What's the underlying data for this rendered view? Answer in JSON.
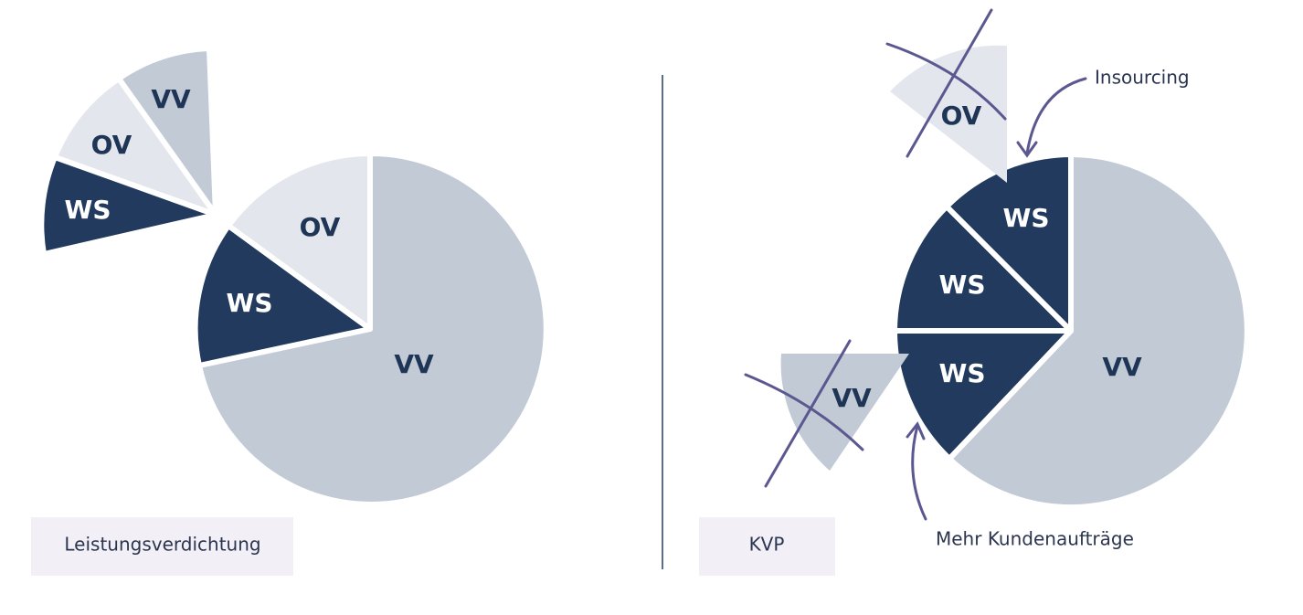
{
  "left": {
    "pie": [
      "VV",
      "WS",
      "OV"
    ],
    "exploded": [
      "VV",
      "OV",
      "WS"
    ],
    "caption": "Leistungsverdichtung"
  },
  "right": {
    "pie": [
      "VV",
      "WS",
      "WS",
      "WS"
    ],
    "removed": [
      "OV",
      "VV"
    ],
    "annotations": [
      "Insourcing",
      "Mehr Kundenaufträge"
    ],
    "caption": "KVP"
  }
}
